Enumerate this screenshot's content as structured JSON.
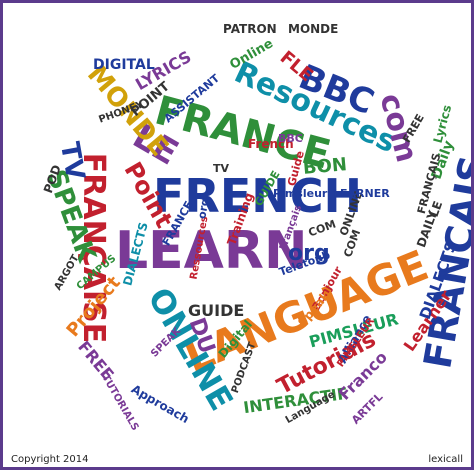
{
  "colors": {
    "frame": "#5b3b8c",
    "background": "#ffffff",
    "palette": [
      "#1f3b9c",
      "#c2202e",
      "#e87a1d",
      "#2f8f3a",
      "#7a3a96",
      "#0e8fa8",
      "#d1a10a",
      "#333333",
      "#1a9e5a"
    ]
  },
  "words": [
    {
      "text": "FRENCH"
    },
    {
      "text": "LEARN"
    },
    {
      "text": "LANGUAGE"
    },
    {
      "text": "FRANCE"
    },
    {
      "text": "FRANÇAIS"
    },
    {
      "text": "Resources"
    },
    {
      "text": "FRANÇAISE"
    },
    {
      "text": "ONLINE"
    },
    {
      "text": "LE"
    },
    {
      "text": "BBC"
    },
    {
      "text": "MONDE"
    },
    {
      "text": "Point"
    },
    {
      "text": "com"
    },
    {
      "text": "Tutorials"
    },
    {
      "text": "SPEAK"
    },
    {
      "text": "TV"
    },
    {
      "text": "DU"
    },
    {
      "text": "org"
    },
    {
      "text": "GUIDE"
    },
    {
      "text": "PIMSLEUR"
    },
    {
      "text": "INTERACTIF"
    },
    {
      "text": "Project"
    },
    {
      "text": "FREE"
    },
    {
      "text": "Learner"
    },
    {
      "text": "DIALECTS"
    },
    {
      "text": "LYRICS"
    },
    {
      "text": "DIGITAL"
    },
    {
      "text": "BON"
    },
    {
      "text": "Daily"
    },
    {
      "text": "Franco"
    },
    {
      "text": "FLE"
    },
    {
      "text": "Lyrics"
    },
    {
      "text": "PATRON"
    },
    {
      "text": "MONDE"
    },
    {
      "text": "Online"
    },
    {
      "text": "POD"
    },
    {
      "text": "French"
    },
    {
      "text": "Bonjour"
    },
    {
      "text": "ARTFL"
    },
    {
      "text": "Approach"
    },
    {
      "text": "PODCAST"
    },
    {
      "text": "ASSISTANT"
    },
    {
      "text": "Training"
    },
    {
      "text": "Alliance"
    },
    {
      "text": "Teletoub"
    },
    {
      "text": "Speak"
    },
    {
      "text": "GUIDE"
    },
    {
      "text": "ONLINE"
    },
    {
      "text": "LEARNER"
    },
    {
      "text": "FREE"
    },
    {
      "text": "TV"
    },
    {
      "text": "CAMPUS"
    },
    {
      "text": "POINT"
    },
    {
      "text": "DAILY"
    },
    {
      "text": "PHONEY"
    },
    {
      "text": "COM"
    },
    {
      "text": "FRANCE"
    },
    {
      "text": "ARGOT"
    },
    {
      "text": "TUTORIALS"
    },
    {
      "text": "LE"
    },
    {
      "text": "DIALECTS"
    },
    {
      "text": "Digital"
    },
    {
      "text": "Language"
    },
    {
      "text": "COM"
    },
    {
      "text": "Pimsleur"
    },
    {
      "text": "Français"
    },
    {
      "text": "PIMSLEUR"
    },
    {
      "text": "SPEAK"
    },
    {
      "text": "FRANÇAIS"
    },
    {
      "text": "Ressources"
    },
    {
      "text": "Guide"
    },
    {
      "text": "BBC"
    },
    {
      "text": "org"
    }
  ],
  "footer": {
    "left": "Copyright 2014",
    "right": "lexicall"
  }
}
